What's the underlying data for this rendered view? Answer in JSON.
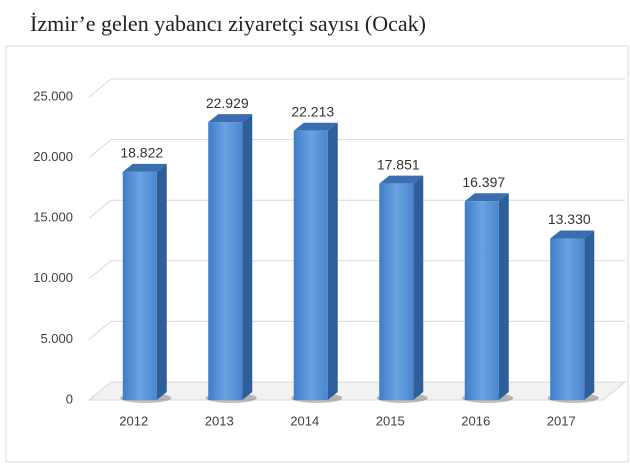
{
  "chart_data": {
    "type": "bar3d",
    "title": "İzmir’e gelen yabancı ziyaretçi sayısı (Ocak)",
    "categories": [
      "2012",
      "2013",
      "2014",
      "2015",
      "2016",
      "2017"
    ],
    "values": [
      18822,
      22929,
      22213,
      17851,
      16397,
      13330
    ],
    "value_labels": [
      "18.822",
      "22.929",
      "22.213",
      "17.851",
      "16.397",
      "13.330"
    ],
    "color": "#4a86cf",
    "ylim": [
      0,
      25000
    ],
    "yticks": [
      0,
      {
        "value": 5000,
        "label": "5.000"
      },
      {
        "value": 10000,
        "label": "10.000"
      },
      {
        "value": 15000,
        "label": "15.000"
      },
      {
        "value": 20000,
        "label": "20.000"
      },
      {
        "value": 25000,
        "label": "25.000"
      }
    ],
    "grid": true
  }
}
